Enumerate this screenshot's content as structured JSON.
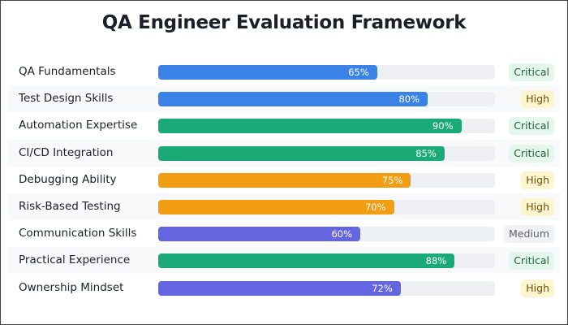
{
  "chart_data": {
    "type": "bar",
    "orientation": "horizontal",
    "title": "QA Engineer Evaluation Framework",
    "xlim": [
      0,
      100
    ],
    "grid": false,
    "categories": [
      "QA Fundamentals",
      "Test Design Skills",
      "Automation Expertise",
      "CI/CD Integration",
      "Debugging Ability",
      "Risk-Based Testing",
      "Communication Skills",
      "Practical Experience",
      "Ownership Mindset"
    ],
    "values": [
      65,
      80,
      90,
      85,
      75,
      70,
      60,
      88,
      72
    ],
    "value_labels": [
      "65%",
      "80%",
      "90%",
      "85%",
      "75%",
      "70%",
      "60%",
      "88%",
      "72%"
    ],
    "priorities": [
      "Critical",
      "High",
      "Critical",
      "Critical",
      "High",
      "High",
      "Medium",
      "Critical",
      "High"
    ],
    "bar_colors": [
      "#3b82e6",
      "#3b82e6",
      "#1aaa78",
      "#1aaa78",
      "#f29d12",
      "#f29d12",
      "#6366e0",
      "#1aaa78",
      "#6366e0"
    ]
  },
  "badge_colors": {
    "Critical": {
      "bg": "#e4f7ec",
      "fg": "#1f5e3e"
    },
    "High": {
      "bg": "#fdf5cf",
      "fg": "#6b5200"
    },
    "Medium": {
      "bg": "#f1f2f4",
      "fg": "#5a5f68"
    }
  }
}
